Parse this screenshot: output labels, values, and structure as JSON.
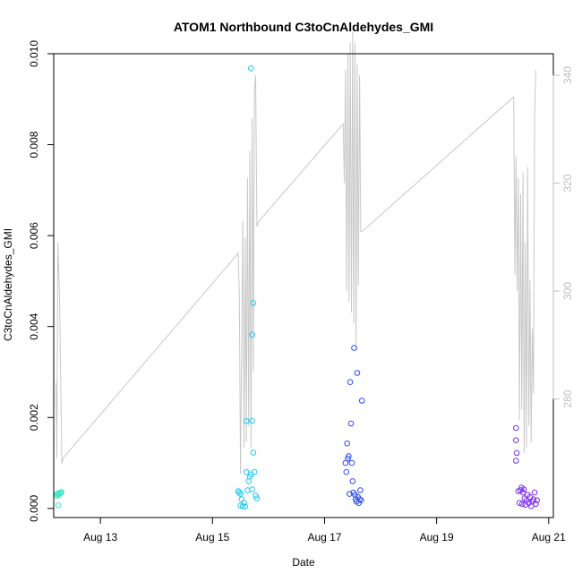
{
  "chart_data": {
    "type": "scatter",
    "title": "ATOM1 Northbound C3toCnAldehydes_GMI",
    "xlabel": "Date",
    "ylabel": "C3toCnAldehydes_GMI",
    "x_ticks": [
      {
        "value": "2016-08-13",
        "label": "Aug 13"
      },
      {
        "value": "2016-08-15",
        "label": "Aug 15"
      },
      {
        "value": "2016-08-17",
        "label": "Aug 17"
      },
      {
        "value": "2016-08-19",
        "label": "Aug 19"
      },
      {
        "value": "2016-08-21",
        "label": "Aug 21"
      }
    ],
    "xlim": [
      "2016-08-12T04:00",
      "2016-08-21T02:00"
    ],
    "ylim": [
      -0.0002,
      0.01
    ],
    "y_ticks": [
      "0.000",
      "0.002",
      "0.004",
      "0.006",
      "0.008",
      "0.010"
    ],
    "y2lim": [
      258,
      344
    ],
    "y2_ticks": [
      "280",
      "300",
      "320",
      "340"
    ],
    "grid": false,
    "colors": {
      "axis": "#000000",
      "secondary_axis": "#bebebe",
      "line": "#c8c8c8",
      "flight1": "#3fe6c8",
      "flight2": "#22c8ef",
      "flight3": "#2d4ef0",
      "flight4": "#7a2ef0"
    },
    "series": [
      {
        "color_key": "flight1",
        "points": [
          [
            "2016-08-12T05:00",
            0.0003
          ],
          [
            "2016-08-12T05:20",
            0.00028
          ],
          [
            "2016-08-12T05:40",
            0.00032
          ],
          [
            "2016-08-12T06:00",
            0.00034
          ],
          [
            "2016-08-12T06:20",
            0.00029
          ],
          [
            "2016-08-12T06:40",
            0.00033
          ],
          [
            "2016-08-12T07:00",
            0.00035
          ],
          [
            "2016-08-12T07:20",
            0.00036
          ],
          [
            "2016-08-12T06:00",
            7e-05
          ]
        ]
      },
      {
        "color_key": "flight2",
        "points": [
          [
            "2016-08-15T11:00",
            0.00038
          ],
          [
            "2016-08-15T11:30",
            0.00035
          ],
          [
            "2016-08-15T12:00",
            0.00032
          ],
          [
            "2016-08-15T12:30",
            0.0002
          ],
          [
            "2016-08-15T12:00",
            6e-05
          ],
          [
            "2016-08-15T13:00",
            5e-05
          ],
          [
            "2016-08-15T13:30",
            0.00012
          ],
          [
            "2016-08-15T14:00",
            4e-05
          ],
          [
            "2016-08-15T14:30",
            0.0008
          ],
          [
            "2016-08-15T15:00",
            0.0004
          ],
          [
            "2016-08-15T15:30",
            0.0006
          ],
          [
            "2016-08-15T16:00",
            0.0007
          ],
          [
            "2016-08-15T16:30",
            0.00075
          ],
          [
            "2016-08-15T17:00",
            0.00042
          ],
          [
            "2016-08-15T14:30",
            0.00192
          ],
          [
            "2016-08-15T17:00",
            0.00193
          ],
          [
            "2016-08-15T17:00",
            0.00382
          ],
          [
            "2016-08-15T17:30",
            0.00452
          ],
          [
            "2016-08-15T17:30",
            0.00123
          ],
          [
            "2016-08-15T18:00",
            0.0008
          ],
          [
            "2016-08-15T18:30",
            0.00028
          ],
          [
            "2016-08-15T19:00",
            0.00022
          ],
          [
            "2016-08-15T16:30",
            0.00968
          ]
        ]
      },
      {
        "color_key": "flight3",
        "points": [
          [
            "2016-08-17T09:00",
            0.001
          ],
          [
            "2016-08-17T09:20",
            0.0008
          ],
          [
            "2016-08-17T09:40",
            0.00143
          ],
          [
            "2016-08-17T10:00",
            0.0011
          ],
          [
            "2016-08-17T10:20",
            0.00115
          ],
          [
            "2016-08-17T10:40",
            0.00032
          ],
          [
            "2016-08-17T11:00",
            0.00278
          ],
          [
            "2016-08-17T11:20",
            0.00187
          ],
          [
            "2016-08-17T11:40",
            0.001
          ],
          [
            "2016-08-17T12:00",
            0.0006
          ],
          [
            "2016-08-17T12:20",
            0.00035
          ],
          [
            "2016-08-17T12:40",
            0.00353
          ],
          [
            "2016-08-17T13:00",
            0.0003
          ],
          [
            "2016-08-17T13:20",
            0.0002
          ],
          [
            "2016-08-17T13:40",
            0.00015
          ],
          [
            "2016-08-17T14:00",
            0.00298
          ],
          [
            "2016-08-17T14:20",
            0.00025
          ],
          [
            "2016-08-17T14:40",
            0.00012
          ],
          [
            "2016-08-17T15:00",
            0.0002
          ],
          [
            "2016-08-17T15:20",
            0.0004
          ],
          [
            "2016-08-17T16:00",
            0.00237
          ],
          [
            "2016-08-17T15:40",
            0.00018
          ]
        ]
      },
      {
        "color_key": "flight4",
        "points": [
          [
            "2016-08-20T10:00",
            0.00105
          ],
          [
            "2016-08-20T10:20",
            0.00122
          ],
          [
            "2016-08-20T10:00",
            0.0015
          ],
          [
            "2016-08-20T10:00",
            0.00177
          ],
          [
            "2016-08-20T11:00",
            0.00038
          ],
          [
            "2016-08-20T11:30",
            0.00012
          ],
          [
            "2016-08-20T12:00",
            0.0004
          ],
          [
            "2016-08-20T12:20",
            0.00046
          ],
          [
            "2016-08-20T12:40",
            0.0001
          ],
          [
            "2016-08-20T13:00",
            0.00035
          ],
          [
            "2016-08-20T13:20",
            0.00042
          ],
          [
            "2016-08-20T13:40",
            0.00022
          ],
          [
            "2016-08-20T14:00",
            8e-05
          ],
          [
            "2016-08-20T14:30",
            0.00018
          ],
          [
            "2016-08-20T15:00",
            0.0003
          ],
          [
            "2016-08-20T15:30",
            0.00012
          ],
          [
            "2016-08-20T16:00",
            0.00025
          ],
          [
            "2016-08-20T16:30",
            5e-05
          ],
          [
            "2016-08-20T17:00",
            0.00015
          ],
          [
            "2016-08-20T17:30",
            0.0002
          ],
          [
            "2016-08-20T18:00",
            0.00035
          ],
          [
            "2016-08-20T18:30",
            0.0001
          ],
          [
            "2016-08-20T19:00",
            0.00018
          ]
        ]
      }
    ],
    "altitude_line": [
      [
        "2016-08-12T05:00",
        283
      ],
      [
        "2016-08-12T05:20",
        269
      ],
      [
        "2016-08-12T05:45",
        309
      ],
      [
        "2016-08-12T06:30",
        299
      ],
      [
        "2016-08-12T07:30",
        268
      ],
      [
        "2016-08-12T08:00",
        269
      ],
      [
        "2016-08-15T11:00",
        307
      ],
      [
        "2016-08-15T11:30",
        299
      ],
      [
        "2016-08-15T12:00",
        266
      ],
      [
        "2016-08-15T13:00",
        313
      ],
      [
        "2016-08-15T13:30",
        271
      ],
      [
        "2016-08-15T14:00",
        310
      ],
      [
        "2016-08-15T14:30",
        272
      ],
      [
        "2016-08-15T15:00",
        321
      ],
      [
        "2016-08-15T15:30",
        275
      ],
      [
        "2016-08-15T16:00",
        326
      ],
      [
        "2016-08-15T16:30",
        271
      ],
      [
        "2016-08-15T17:00",
        332
      ],
      [
        "2016-08-15T17:30",
        285
      ],
      [
        "2016-08-15T18:00",
        337
      ],
      [
        "2016-08-15T18:30",
        340
      ],
      [
        "2016-08-15T19:00",
        312
      ],
      [
        "2016-08-15T20:00",
        313
      ],
      [
        "2016-08-17T08:00",
        331
      ],
      [
        "2016-08-17T08:30",
        320
      ],
      [
        "2016-08-17T09:00",
        341
      ],
      [
        "2016-08-17T09:30",
        300
      ],
      [
        "2016-08-17T10:00",
        344
      ],
      [
        "2016-08-17T10:30",
        298
      ],
      [
        "2016-08-17T11:00",
        346
      ],
      [
        "2016-08-17T11:30",
        296
      ],
      [
        "2016-08-17T12:00",
        348
      ],
      [
        "2016-08-17T12:30",
        294
      ],
      [
        "2016-08-17T13:00",
        346
      ],
      [
        "2016-08-17T13:30",
        289
      ],
      [
        "2016-08-17T14:00",
        342
      ],
      [
        "2016-08-17T14:30",
        301
      ],
      [
        "2016-08-17T15:00",
        340
      ],
      [
        "2016-08-17T15:30",
        311
      ],
      [
        "2016-08-17T16:00",
        311
      ],
      [
        "2016-08-20T09:00",
        336
      ],
      [
        "2016-08-20T09:30",
        303
      ],
      [
        "2016-08-20T10:00",
        325
      ],
      [
        "2016-08-20T10:30",
        300
      ],
      [
        "2016-08-20T11:00",
        321
      ],
      [
        "2016-08-20T11:30",
        276
      ],
      [
        "2016-08-20T12:00",
        318
      ],
      [
        "2016-08-20T12:30",
        278
      ],
      [
        "2016-08-20T13:00",
        322
      ],
      [
        "2016-08-20T13:30",
        270
      ],
      [
        "2016-08-20T14:00",
        309
      ],
      [
        "2016-08-20T14:30",
        271
      ],
      [
        "2016-08-20T15:00",
        323
      ],
      [
        "2016-08-20T15:30",
        275
      ],
      [
        "2016-08-20T16:00",
        302
      ],
      [
        "2016-08-20T16:30",
        272
      ],
      [
        "2016-08-20T17:00",
        293
      ],
      [
        "2016-08-20T17:30",
        281
      ],
      [
        "2016-08-20T18:00",
        333
      ],
      [
        "2016-08-20T18:30",
        341
      ]
    ]
  }
}
